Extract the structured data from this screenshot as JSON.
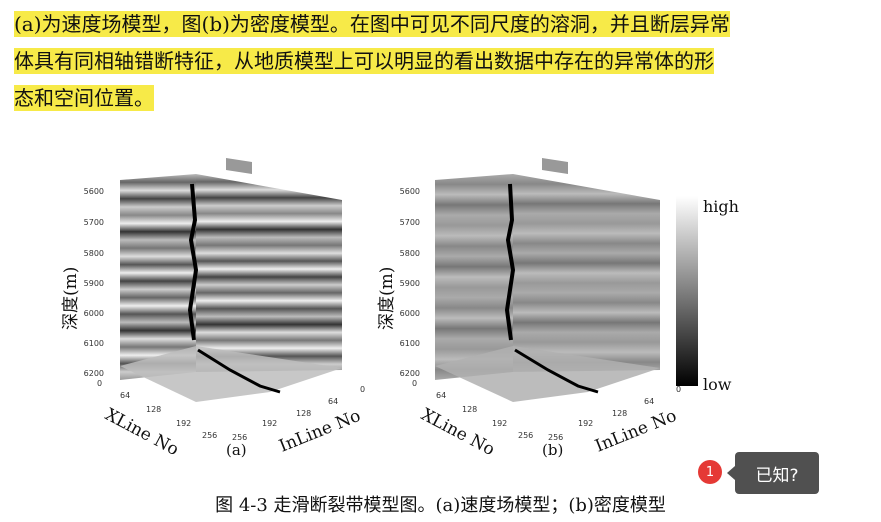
{
  "paragraph": {
    "line1": "(a)为速度场模型，图(b)为密度模型。在图中可见不同尺度的溶洞，并且断层异常",
    "line2": "体具有同相轴错断特征，从地质模型上可以明显的看出数据中存在的异常体的形",
    "line3": "态和空间位置。"
  },
  "figure": {
    "panel_a": {
      "label": "(a)",
      "y_axis_label": "深度(m)",
      "x_axis_label": "XLine No",
      "z_axis_label": "InLine No",
      "depth_ticks": [
        "5600",
        "5700",
        "5800",
        "5900",
        "6000",
        "6100",
        "6200"
      ],
      "xline_ticks": [
        "0",
        "64",
        "128",
        "192",
        "256"
      ],
      "inline_ticks": [
        "0",
        "64",
        "128",
        "192",
        "256"
      ]
    },
    "panel_b": {
      "label": "(b)",
      "y_axis_label": "深度(m)",
      "x_axis_label": "XLine No",
      "z_axis_label": "InLine No",
      "depth_ticks": [
        "5600",
        "5700",
        "5800",
        "5900",
        "6000",
        "6100",
        "6200"
      ],
      "xline_ticks": [
        "0",
        "64",
        "128",
        "192",
        "256"
      ],
      "inline_ticks": [
        "0",
        "64",
        "128",
        "192",
        "256"
      ]
    },
    "colorbar": {
      "high": "high",
      "low": "low"
    }
  },
  "caption": "图 4-3 走滑断裂带模型图。(a)速度场模型；(b)密度模型",
  "notification": {
    "count": "1",
    "tooltip": "已知?"
  },
  "colors": {
    "highlight": "#f7ea48",
    "badge": "#e53935",
    "tooltip_bg": "#505050"
  }
}
